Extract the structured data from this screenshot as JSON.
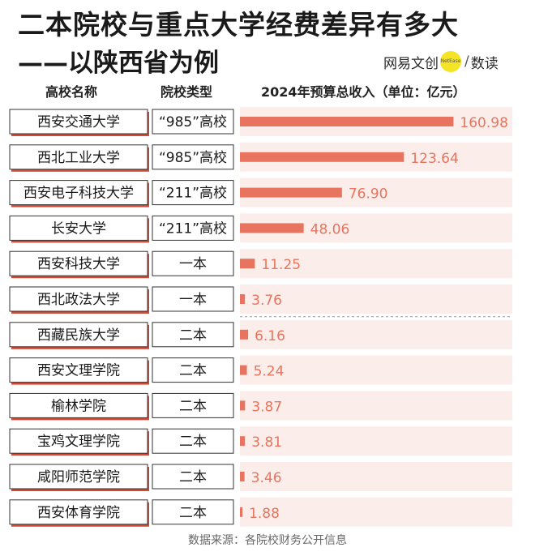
{
  "title_line1": "二本院校与重点大学经费差异有多大",
  "title_line2": "——以陕西省为例",
  "brand": {
    "name": "网易文创",
    "badge": "NetEase",
    "column": "数读",
    "accent": "#f5e326"
  },
  "headers": {
    "school": "高校名称",
    "type": "院校类型",
    "value": "2024年预算总收入（单位：亿元）"
  },
  "source": "数据来源：各院校财务公开信息",
  "colors": {
    "bar": "#e8745f",
    "value_text": "#e8745f",
    "row_band": "#fbeeea",
    "box_shadow": "#d14a36"
  },
  "chart_data": {
    "type": "bar",
    "orientation": "horizontal",
    "categories": [
      "西安交通大学",
      "西北工业大学",
      "西安电子科技大学",
      "长安大学",
      "西安科技大学",
      "西北政法大学",
      "西藏民族大学",
      "西安文理学院",
      "榆林学院",
      "宝鸡文理学院",
      "咸阳师范学院",
      "西安体育学院"
    ],
    "types": [
      "“985”高校",
      "“985”高校",
      "“211”高校",
      "“211”高校",
      "一本",
      "一本",
      "二本",
      "二本",
      "二本",
      "二本",
      "二本",
      "二本"
    ],
    "values": [
      160.98,
      123.64,
      76.9,
      48.06,
      11.25,
      3.76,
      6.16,
      5.24,
      3.87,
      3.81,
      3.46,
      1.88
    ],
    "value_labels": [
      "160.98",
      "123.64",
      "76.90",
      "48.06",
      "11.25",
      "3.76",
      "6.16",
      "5.24",
      "3.87",
      "3.81",
      "3.46",
      "1.88"
    ],
    "xlim": [
      0,
      165
    ],
    "ylabel": "2024年预算总收入（单位：亿元）",
    "divider_after_index": 5,
    "grid": false,
    "legend": "none"
  }
}
